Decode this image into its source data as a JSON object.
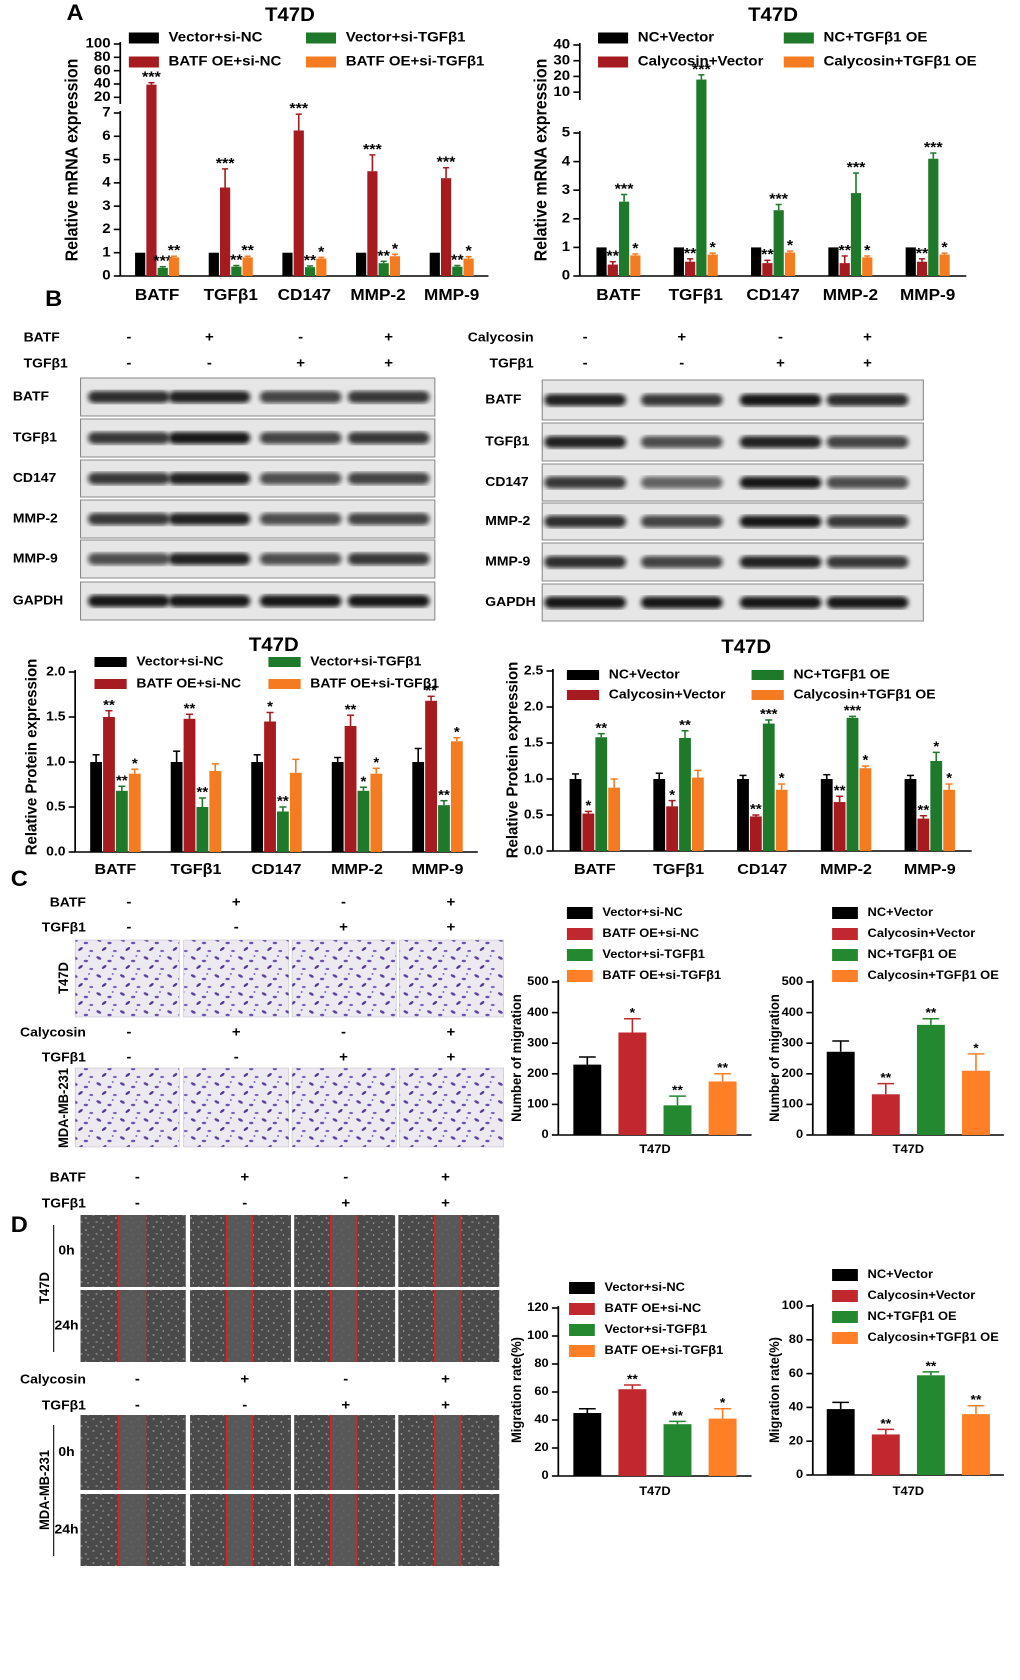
{
  "panel_labels": [
    "A",
    "B",
    "C",
    "D"
  ],
  "chart_data": [
    {
      "type": "bar",
      "title": "T47D",
      "ylabel": "Relative mRNA expression",
      "categories": [
        "BATF",
        "TGFβ1",
        "CD147",
        "MMP-2",
        "MMP-9"
      ],
      "y_segments": [
        {
          "ylim": [
            0,
            7
          ],
          "yticks": [
            0,
            1,
            2,
            3,
            4,
            5,
            6,
            7
          ]
        },
        {
          "ylim": [
            10,
            100
          ],
          "yticks": [
            20,
            40,
            60,
            80,
            100
          ]
        }
      ],
      "series": [
        {
          "name": "Vector+si-NC",
          "color": "#000000",
          "values": [
            1,
            1,
            1,
            1,
            1
          ],
          "errors": [
            null,
            null,
            null,
            null,
            null
          ],
          "annotations": [
            null,
            null,
            null,
            null,
            null
          ]
        },
        {
          "name": "BATF OE+si-NC",
          "color": "#a61b1f",
          "values": [
            39,
            3.8,
            6.25,
            4.5,
            4.2
          ],
          "errors": [
            3,
            0.8,
            0.7,
            0.7,
            0.45
          ],
          "annotations": [
            "***",
            "***",
            "***",
            "***",
            "***"
          ]
        },
        {
          "name": "Vector+si-TGFβ1",
          "color": "#1e7a2a",
          "values": [
            0.35,
            0.4,
            0.38,
            0.55,
            0.4
          ],
          "errors": [
            0.05,
            0.05,
            0.05,
            0.08,
            0.05
          ],
          "annotations": [
            "***",
            "**",
            "**",
            "**",
            "**"
          ]
        },
        {
          "name": "BATF OE+si-TGFβ1",
          "color": "#f47b20",
          "values": [
            0.8,
            0.8,
            0.75,
            0.85,
            0.75
          ],
          "errors": [
            0.05,
            0.05,
            0.05,
            0.08,
            0.08
          ],
          "annotations": [
            "**",
            "**",
            "*",
            "*",
            "*"
          ]
        }
      ]
    },
    {
      "type": "bar",
      "title": "T47D",
      "ylabel": "Relative mRNA expression",
      "categories": [
        "BATF",
        "TGFβ1",
        "CD147",
        "MMP-2",
        "MMP-9"
      ],
      "y_segments": [
        {
          "ylim": [
            0,
            5
          ],
          "yticks": [
            0,
            1,
            2,
            3,
            4,
            5
          ]
        },
        {
          "ylim": [
            5,
            40
          ],
          "yticks": [
            10,
            20,
            30,
            40
          ]
        }
      ],
      "series": [
        {
          "name": "NC+Vector",
          "color": "#000000",
          "values": [
            1,
            1,
            1,
            1,
            1
          ],
          "errors": [
            null,
            null,
            null,
            null,
            null
          ],
          "annotations": [
            null,
            null,
            null,
            null,
            null
          ]
        },
        {
          "name": "Calycosin+Vector",
          "color": "#a61b1f",
          "values": [
            0.4,
            0.5,
            0.45,
            0.45,
            0.5
          ],
          "errors": [
            0.1,
            0.1,
            0.1,
            0.25,
            0.1
          ],
          "annotations": [
            "**",
            "**",
            "**",
            "**",
            "**"
          ]
        },
        {
          "name": "NC+TGFβ1 OE",
          "color": "#1e7a2a",
          "values": [
            2.6,
            18,
            2.3,
            2.9,
            4.1
          ],
          "errors": [
            0.25,
            3,
            0.2,
            0.7,
            0.2
          ],
          "annotations": [
            "***",
            "***",
            "***",
            "***",
            "***"
          ]
        },
        {
          "name": "Calycosin+TGFβ1 OE",
          "color": "#f47b20",
          "values": [
            0.72,
            0.75,
            0.82,
            0.65,
            0.75
          ],
          "errors": [
            0.05,
            0.05,
            0.05,
            0.05,
            0.05
          ],
          "annotations": [
            "*",
            "*",
            "*",
            "*",
            "*"
          ]
        }
      ]
    },
    {
      "type": "bar",
      "title": "T47D",
      "ylabel": "Relative Protein expression",
      "categories": [
        "BATF",
        "TGFβ1",
        "CD147",
        "MMP-2",
        "MMP-9"
      ],
      "ylim": [
        0,
        2
      ],
      "yticks": [
        {
          "value": 0,
          "label": "0.0"
        },
        0.5,
        {
          "value": 1,
          "label": "1.0"
        },
        1.5,
        {
          "value": 2,
          "label": "2.0"
        }
      ],
      "series": [
        {
          "name": "Vector+si-NC",
          "color": "#000000",
          "values": [
            1,
            1,
            1,
            1,
            1
          ],
          "errors": [
            0.08,
            0.12,
            0.08,
            0.05,
            0.15
          ],
          "annotations": [
            null,
            null,
            null,
            null,
            null
          ]
        },
        {
          "name": "BATF OE+si-NC",
          "color": "#a61b1f",
          "values": [
            1.5,
            1.48,
            1.45,
            1.4,
            1.68
          ],
          "errors": [
            0.07,
            0.05,
            0.1,
            0.12,
            0.05
          ],
          "annotations": [
            "**",
            "**",
            "*",
            "**",
            "**"
          ]
        },
        {
          "name": "Vector+si-TGFβ1",
          "color": "#1e7a2a",
          "values": [
            0.68,
            0.5,
            0.45,
            0.68,
            0.52
          ],
          "errors": [
            0.05,
            0.1,
            0.05,
            0.04,
            0.05
          ],
          "annotations": [
            "**",
            "**",
            "**",
            "*",
            "**"
          ]
        },
        {
          "name": "BATF OE+si-TGFβ1",
          "color": "#f47b20",
          "values": [
            0.87,
            0.9,
            0.88,
            0.87,
            1.23
          ],
          "errors": [
            0.05,
            0.08,
            0.15,
            0.06,
            0.04
          ],
          "annotations": [
            "*",
            null,
            null,
            "*",
            "*"
          ]
        }
      ]
    },
    {
      "type": "bar",
      "title": "T47D",
      "ylabel": "Relative Protein expression",
      "categories": [
        "BATF",
        "TGFβ1",
        "CD147",
        "MMP-2",
        "MMP-9"
      ],
      "ylim": [
        0,
        2.5
      ],
      "yticks": [
        {
          "value": 0,
          "label": "0.0"
        },
        0.5,
        {
          "value": 1,
          "label": "1.0"
        },
        1.5,
        {
          "value": 2,
          "label": "2.0"
        },
        2.5
      ],
      "series": [
        {
          "name": "NC+Vector",
          "color": "#000000",
          "values": [
            1,
            1,
            1,
            1,
            1
          ],
          "errors": [
            0.07,
            0.08,
            0.05,
            0.06,
            0.05
          ],
          "annotations": [
            null,
            null,
            null,
            null,
            null
          ]
        },
        {
          "name": "Calycosin+Vector",
          "color": "#a61b1f",
          "values": [
            0.52,
            0.62,
            0.48,
            0.68,
            0.45
          ],
          "errors": [
            0.03,
            0.08,
            0.02,
            0.08,
            0.04
          ],
          "annotations": [
            "*",
            "*",
            "**",
            "**",
            "**"
          ]
        },
        {
          "name": "NC+TGFβ1 OE",
          "color": "#1e7a2a",
          "values": [
            1.58,
            1.57,
            1.77,
            1.85,
            1.25
          ],
          "errors": [
            0.05,
            0.1,
            0.05,
            0.02,
            0.12
          ],
          "annotations": [
            "**",
            "**",
            "***",
            "***",
            "*"
          ]
        },
        {
          "name": "Calycosin+TGFβ1 OE",
          "color": "#f47b20",
          "values": [
            0.88,
            1.02,
            0.85,
            1.15,
            0.85
          ],
          "errors": [
            0.12,
            0.1,
            0.08,
            0.03,
            0.08
          ],
          "annotations": [
            null,
            null,
            "*",
            "*",
            "*"
          ]
        }
      ]
    },
    {
      "type": "bar",
      "ylabel": "Number of migration",
      "categories": [
        "T47D"
      ],
      "ylim": [
        0,
        500
      ],
      "yticks": [
        0,
        100,
        200,
        300,
        400,
        500
      ],
      "series": [
        {
          "name": "Vector+si-NC",
          "color": "#000000",
          "values": [
            230
          ],
          "errors": [
            25
          ],
          "annotations": [
            null
          ]
        },
        {
          "name": "BATF OE+si-NC",
          "color": "#c0282d",
          "values": [
            335
          ],
          "errors": [
            45
          ],
          "annotations": [
            "*"
          ]
        },
        {
          "name": "Vector+si-TGFβ1",
          "color": "#23882f",
          "values": [
            97
          ],
          "errors": [
            30
          ],
          "annotations": [
            "**"
          ]
        },
        {
          "name": "BATF OE+si-TGFβ1",
          "color": "#ff7f27",
          "values": [
            175
          ],
          "errors": [
            25
          ],
          "annotations": [
            "**"
          ]
        }
      ]
    },
    {
      "type": "bar",
      "ylabel": "Number of migration",
      "categories": [
        "T47D"
      ],
      "ylim": [
        0,
        500
      ],
      "yticks": [
        0,
        100,
        200,
        300,
        400,
        500
      ],
      "series": [
        {
          "name": "NC+Vector",
          "color": "#000000",
          "values": [
            272
          ],
          "errors": [
            35
          ],
          "annotations": [
            null
          ]
        },
        {
          "name": "Calycosin+Vector",
          "color": "#c0282d",
          "values": [
            133
          ],
          "errors": [
            35
          ],
          "annotations": [
            "**"
          ]
        },
        {
          "name": "NC+TGFβ1 OE",
          "color": "#23882f",
          "values": [
            360
          ],
          "errors": [
            20
          ],
          "annotations": [
            "**"
          ]
        },
        {
          "name": "Calycosin+TGFβ1 OE",
          "color": "#ff7f27",
          "values": [
            210
          ],
          "errors": [
            55
          ],
          "annotations": [
            "*"
          ]
        }
      ]
    },
    {
      "type": "bar",
      "ylabel": "Migration rate(%)",
      "categories": [
        "T47D"
      ],
      "ylim": [
        0,
        120
      ],
      "yticks": [
        0,
        20,
        40,
        60,
        80,
        100,
        120
      ],
      "series": [
        {
          "name": "Vector+si-NC",
          "color": "#000000",
          "values": [
            45
          ],
          "errors": [
            3
          ],
          "annotations": [
            null
          ]
        },
        {
          "name": "BATF OE+si-NC",
          "color": "#c0282d",
          "values": [
            62
          ],
          "errors": [
            3
          ],
          "annotations": [
            "**"
          ]
        },
        {
          "name": "Vector+si-TGFβ1",
          "color": "#23882f",
          "values": [
            37
          ],
          "errors": [
            2
          ],
          "annotations": [
            "**"
          ]
        },
        {
          "name": "BATF OE+si-TGFβ1",
          "color": "#ff7f27",
          "values": [
            41
          ],
          "errors": [
            7
          ],
          "annotations": [
            "*"
          ]
        }
      ]
    },
    {
      "type": "bar",
      "ylabel": "Migration rate(%)",
      "categories": [
        "T47D"
      ],
      "ylim": [
        0,
        100
      ],
      "yticks": [
        0,
        20,
        40,
        60,
        80,
        100
      ],
      "series": [
        {
          "name": "NC+Vector",
          "color": "#000000",
          "values": [
            39
          ],
          "errors": [
            4
          ],
          "annotations": [
            null
          ]
        },
        {
          "name": "Calycosin+Vector",
          "color": "#c0282d",
          "values": [
            24
          ],
          "errors": [
            3
          ],
          "annotations": [
            "**"
          ]
        },
        {
          "name": "NC+TGFβ1 OE",
          "color": "#23882f",
          "values": [
            59
          ],
          "errors": [
            2
          ],
          "annotations": [
            "**"
          ]
        },
        {
          "name": "Calycosin+TGFβ1 OE",
          "color": "#ff7f27",
          "values": [
            36
          ],
          "errors": [
            5
          ],
          "annotations": [
            "**"
          ]
        }
      ]
    }
  ],
  "blots": [
    {
      "conditions": [
        {
          "label": "BATF",
          "values": [
            "-",
            "+",
            "-",
            "+"
          ]
        },
        {
          "label": "TGFβ1",
          "values": [
            "-",
            "-",
            "+",
            "+"
          ]
        }
      ],
      "bands": [
        "BATF",
        "TGFβ1",
        "CD147",
        "MMP-2",
        "MMP-9",
        "GAPDH"
      ]
    },
    {
      "conditions": [
        {
          "label": "Calycosin",
          "values": [
            "-",
            "+",
            "-",
            "+"
          ]
        },
        {
          "label": "TGFβ1",
          "values": [
            "-",
            "-",
            "+",
            "+"
          ]
        }
      ],
      "bands": [
        "BATF",
        "TGFβ1",
        "CD147",
        "MMP-2",
        "MMP-9",
        "GAPDH"
      ]
    }
  ],
  "transwell": {
    "groups": [
      {
        "conditions": [
          {
            "label": "BATF",
            "values": [
              "-",
              "+",
              "-",
              "+"
            ]
          },
          {
            "label": "TGFβ1",
            "values": [
              "-",
              "-",
              "+",
              "+"
            ]
          }
        ],
        "row_label": "T47D"
      },
      {
        "conditions": [
          {
            "label": "Calycosin",
            "values": [
              "-",
              "+",
              "-",
              "+"
            ]
          },
          {
            "label": "TGFβ1",
            "values": [
              "-",
              "-",
              "+",
              "+"
            ]
          }
        ],
        "row_label": "MDA-MB-231"
      }
    ]
  },
  "wound": {
    "groups": [
      {
        "conditions": [
          {
            "label": "BATF",
            "values": [
              "-",
              "+",
              "-",
              "+"
            ]
          },
          {
            "label": "TGFβ1",
            "values": [
              "-",
              "-",
              "+",
              "+"
            ]
          }
        ],
        "row_label": "T47D",
        "times": [
          "0h",
          "24h"
        ]
      },
      {
        "conditions": [
          {
            "label": "Calycosin",
            "values": [
              "-",
              "+",
              "-",
              "+"
            ]
          },
          {
            "label": "TGFβ1",
            "values": [
              "-",
              "-",
              "+",
              "+"
            ]
          }
        ],
        "row_label": "MDA-MB-231",
        "times": [
          "0h",
          "24h"
        ]
      }
    ]
  }
}
